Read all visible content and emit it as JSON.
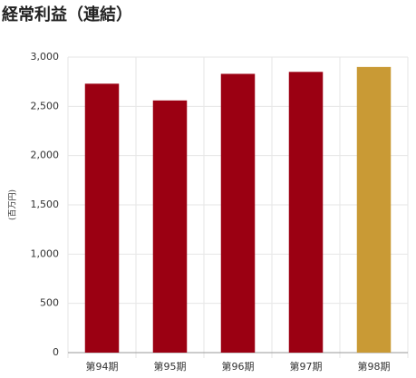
{
  "chart_data": {
    "type": "bar",
    "title": "経常利益（連結）",
    "y_label": "(百万円)",
    "categories": [
      "第94期",
      "第95期",
      "第96期",
      "第97期",
      "第98期"
    ],
    "values": [
      2730,
      2560,
      2830,
      2850,
      2900
    ],
    "colors": [
      "#9b0012",
      "#9b0012",
      "#9b0012",
      "#9b0012",
      "#c99a35"
    ],
    "ylim": [
      0,
      3000
    ],
    "yticks": [
      0,
      500,
      {
        "value": 1000,
        "label": "1,000"
      },
      {
        "value": 1500,
        "label": "1,500"
      },
      {
        "value": 2000,
        "label": "2,000"
      },
      {
        "value": 2500,
        "label": "2,500"
      },
      {
        "value": 3000,
        "label": "3,000"
      }
    ],
    "grid": true
  }
}
